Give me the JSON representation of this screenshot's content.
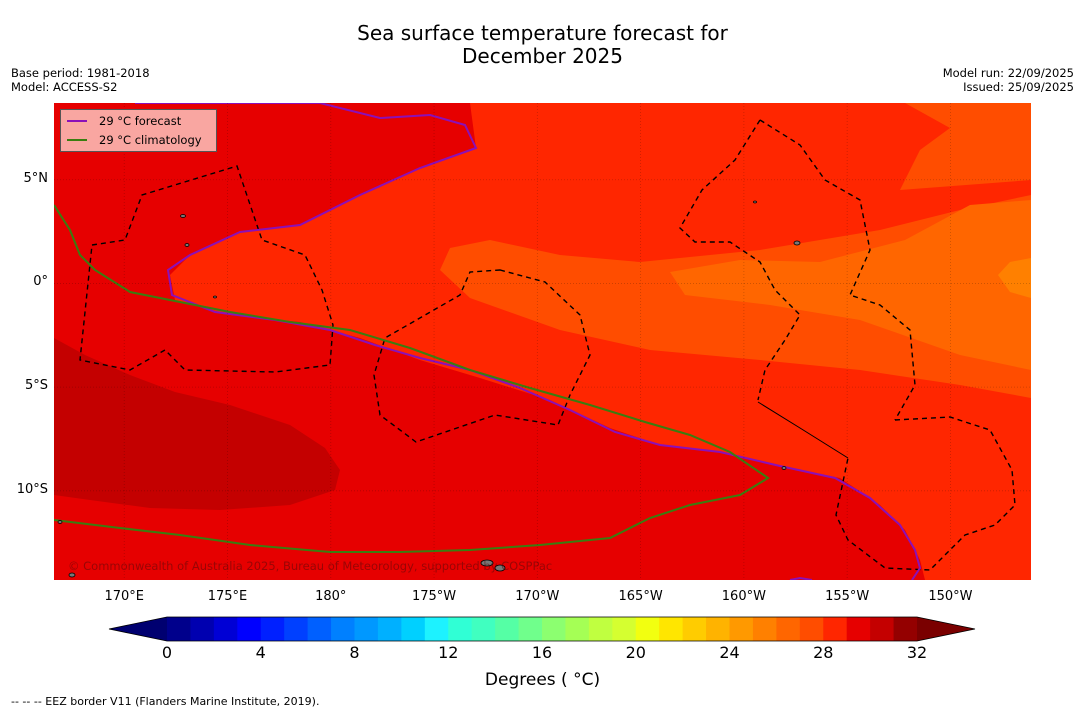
{
  "title": {
    "line1": "Sea surface temperature forecast for",
    "line2": "December 2025"
  },
  "meta": {
    "base_period": "Base period: 1981-2018",
    "model": "Model: ACCESS-S2",
    "model_run": "Model run: 22/09/2025",
    "issued": "Issued: 25/09/2025"
  },
  "map": {
    "lat_labels": [
      "5°N",
      "0°",
      "5°S",
      "10°S"
    ],
    "lat_values": [
      5,
      0,
      -5,
      -10
    ],
    "lon_labels": [
      "170°E",
      "175°E",
      "180°",
      "175°W",
      "170°W",
      "165°W",
      "160°W",
      "155°W",
      "150°W"
    ],
    "lon_values": [
      170,
      175,
      180,
      185,
      190,
      195,
      200,
      205,
      210
    ],
    "extent": {
      "lon_min": 166.6,
      "lon_max": 213.9,
      "lat_min": -14.3,
      "lat_max": 8.7
    },
    "copyright": "© Commonwealth of Australia 2025, Bureau of Meteorology, supported by COSPPac"
  },
  "legend": {
    "forecast_label": "29 °C  forecast",
    "forecast_color": "#8b10b8",
    "climatology_label": "29 °C  climatology",
    "climatology_color": "#3a7d10"
  },
  "colorbar": {
    "min": 0,
    "max": 32,
    "step": 1,
    "tick_labels": [
      "0",
      "4",
      "8",
      "12",
      "16",
      "20",
      "24",
      "28",
      "32"
    ],
    "tick_values": [
      0,
      4,
      8,
      12,
      16,
      20,
      24,
      28,
      32
    ],
    "label": "Degrees ( °C)",
    "colors": [
      "#00008c",
      "#0000b0",
      "#0000d5",
      "#0000ff",
      "#0020ff",
      "#0040ff",
      "#0060ff",
      "#0080ff",
      "#0098ff",
      "#00b0ff",
      "#00d0ff",
      "#1df2ff",
      "#30ffd5",
      "#40ffc0",
      "#55ffa5",
      "#70ff8c",
      "#8cff70",
      "#a5ff55",
      "#c0ff40",
      "#d5ff30",
      "#f2ff10",
      "#ffe600",
      "#ffcc00",
      "#ffb300",
      "#ff9900",
      "#ff8000",
      "#ff6600",
      "#ff4d00",
      "#ff2600",
      "#e60000",
      "#c40000",
      "#940000"
    ]
  },
  "footnote": "--  --  -- EEZ border V11 (Flanders Marine Institute, 2019)."
}
